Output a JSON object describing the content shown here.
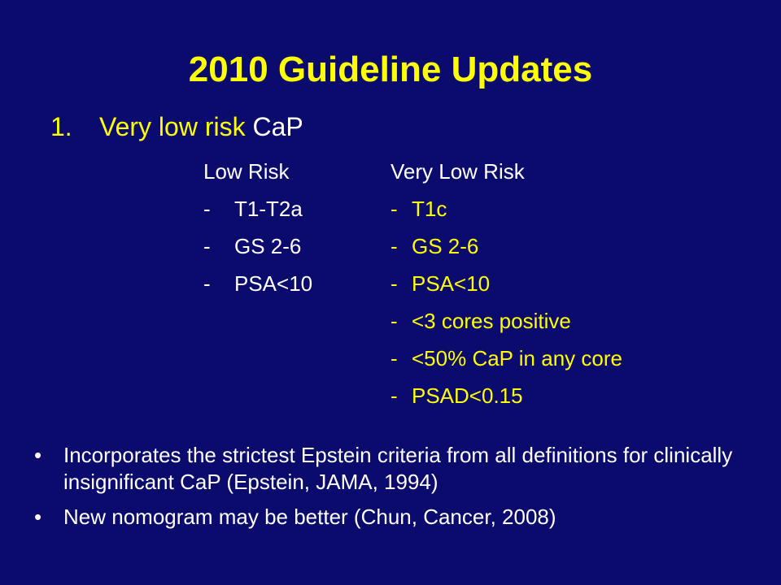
{
  "slide": {
    "title": "2010 Guideline Updates",
    "numbered_item": {
      "number": "1.",
      "highlight": "Very low risk",
      "rest": " CaP"
    },
    "low_risk": {
      "heading": "Low Risk",
      "items": [
        "T1-T2a",
        "GS 2-6",
        "PSA<10"
      ]
    },
    "very_low_risk": {
      "heading": "Very Low Risk",
      "items": [
        "T1c",
        "GS 2-6",
        "PSA<10",
        "<3 cores positive",
        "<50% CaP in any core",
        "PSAD<0.15"
      ]
    },
    "dash": "-",
    "bullet_glyph": "•",
    "bullets": [
      "Incorporates the strictest Epstein criteria from all definitions for clinically insignificant CaP (Epstein, JAMA, 1994)",
      "New nomogram may be better (Chun, Cancer, 2008)"
    ]
  },
  "colors": {
    "background": "#0b0b6e",
    "accent": "#ffff00",
    "text": "#ffffff"
  }
}
